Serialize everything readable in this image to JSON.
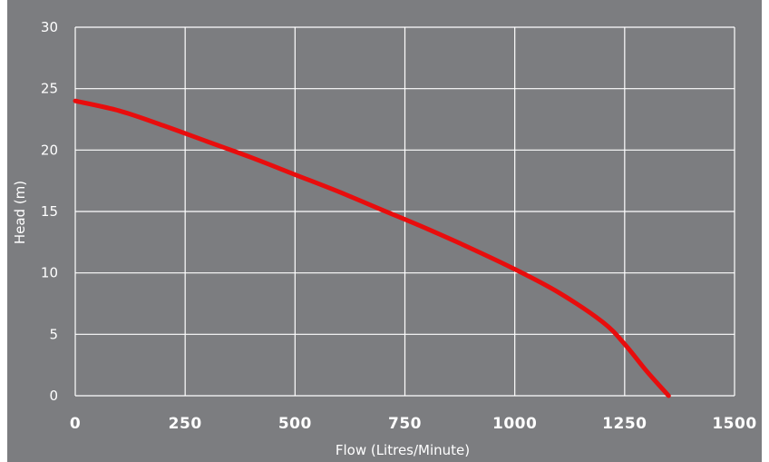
{
  "colors": {
    "plot_background": "#7c7d80",
    "grid": "#ffffff",
    "series_line": "#e80d0d",
    "text": "#ffffff",
    "page_background": "#ffffff"
  },
  "chart_data": {
    "type": "line",
    "title": "",
    "xlabel": "Flow (Litres/Minute)",
    "ylabel": "Head (m)",
    "xlim": [
      0,
      1500
    ],
    "ylim": [
      0,
      30
    ],
    "x_ticks": [
      0,
      250,
      500,
      750,
      1000,
      1250,
      1500
    ],
    "x_tick_labels": [
      "0",
      "250",
      "500",
      "750",
      "1000",
      "1250",
      "1500"
    ],
    "y_ticks": [
      0,
      5,
      10,
      15,
      20,
      25,
      30
    ],
    "y_tick_labels": [
      "0",
      "5",
      "10",
      "15",
      "20",
      "25",
      "30"
    ],
    "grid": true,
    "legend": "none",
    "series": [
      {
        "x": [
          0,
          100,
          200,
          300,
          400,
          500,
          600,
          700,
          800,
          900,
          1000,
          1100,
          1200,
          1250,
          1300,
          1350
        ],
        "y": [
          24,
          23.2,
          22.0,
          20.7,
          19.4,
          18.0,
          16.6,
          15.1,
          13.6,
          12.0,
          10.3,
          8.4,
          6.0,
          4.2,
          2.0,
          0
        ]
      }
    ]
  }
}
